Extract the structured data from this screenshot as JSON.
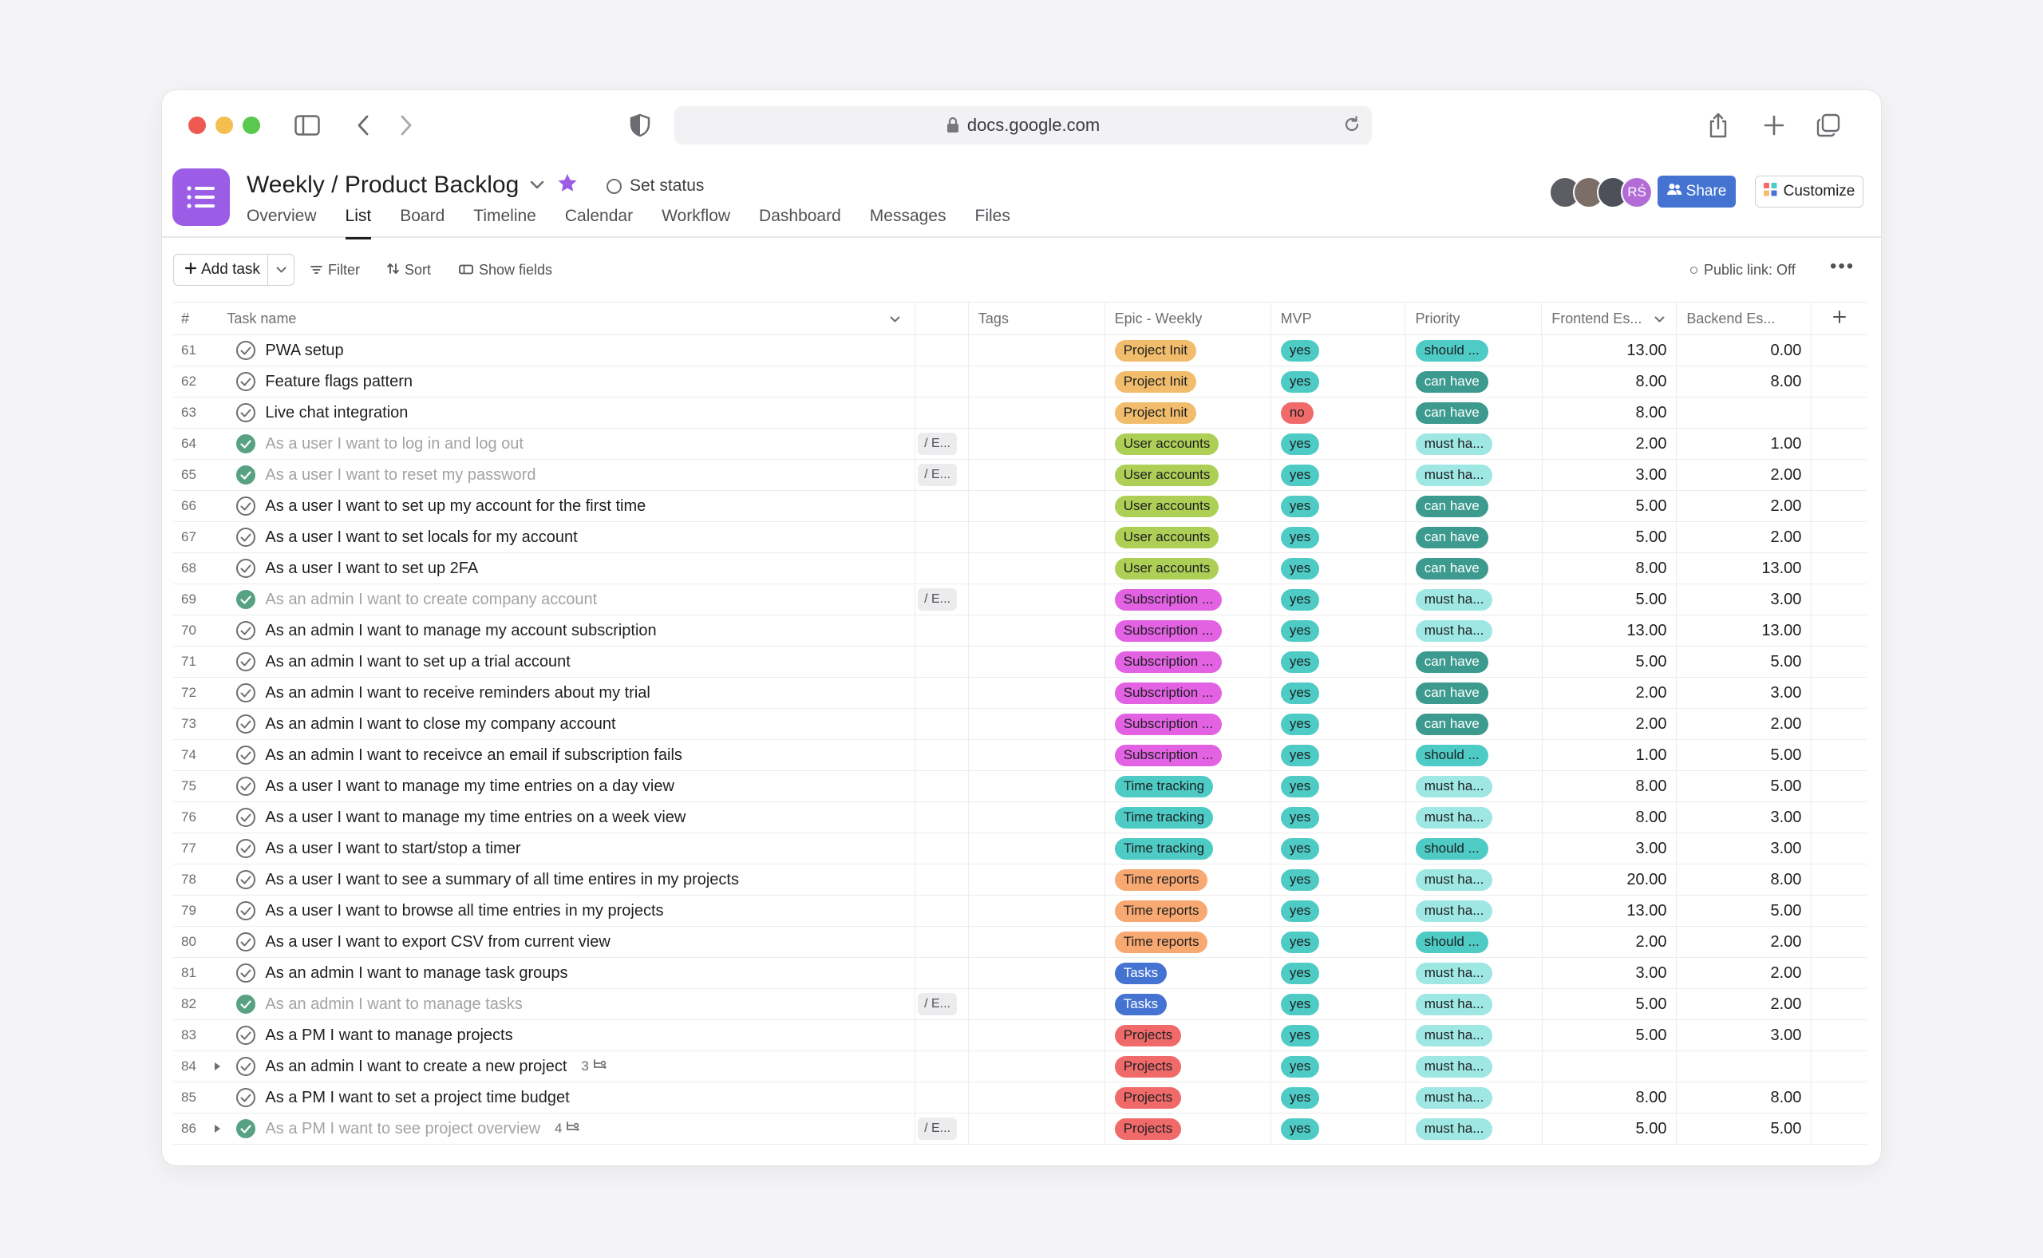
{
  "browser": {
    "url": "docs.google.com"
  },
  "project": {
    "title": "Weekly / Product Backlog",
    "set_status": "Set status",
    "tabs": [
      "Overview",
      "List",
      "Board",
      "Timeline",
      "Calendar",
      "Workflow",
      "Dashboard",
      "Messages",
      "Files"
    ],
    "active_tab": "List",
    "avatars": [
      {
        "initials": "",
        "color": "#5b5d63"
      },
      {
        "initials": "",
        "color": "#7a6e66"
      },
      {
        "initials": "",
        "color": "#4d5058"
      },
      {
        "initials": "RŚ",
        "color": "#b36bd6"
      }
    ],
    "share_label": "Share",
    "customize_label": "Customize"
  },
  "toolbar": {
    "add_task": "Add task",
    "filter": "Filter",
    "sort": "Sort",
    "show_fields": "Show fields",
    "public_link": "Public link: Off"
  },
  "columns": {
    "num": "#",
    "task_name": "Task name",
    "tags": "Tags",
    "epic": "Epic - Weekly",
    "mvp": "MVP",
    "priority": "Priority",
    "frontend": "Frontend Es...",
    "backend": "Backend Es..."
  },
  "epic_colors": {
    "Project Init": {
      "bg": "#f1bd6c",
      "fg": "#1e1f21"
    },
    "User accounts": {
      "bg": "#aecf55",
      "fg": "#1e1f21"
    },
    "Subscription ...": {
      "bg": "#e362e3",
      "fg": "#1e1f21"
    },
    "Time tracking": {
      "bg": "#4ecbc4",
      "fg": "#1e1f21"
    },
    "Time reports": {
      "bg": "#f8a971",
      "fg": "#1e1f21"
    },
    "Tasks": {
      "bg": "#4573d2",
      "fg": "#ffffff"
    },
    "Projects": {
      "bg": "#f06a6a",
      "fg": "#1e1f21"
    }
  },
  "mvp_colors": {
    "yes": {
      "bg": "#4ecbc4",
      "fg": "#1e1f21"
    },
    "no": {
      "bg": "#f06a6a",
      "fg": "#1e1f21"
    }
  },
  "priority_colors": {
    "should ...": {
      "bg": "#4ecbc4",
      "fg": "#1e1f21"
    },
    "can have": {
      "bg": "#3c9a8e",
      "fg": "#ffffff"
    },
    "must ha...": {
      "bg": "#9ee7e3",
      "fg": "#1e1f21"
    }
  },
  "rows": [
    {
      "num": "61",
      "name": "PWA setup",
      "done": false,
      "dep": "",
      "epic": "Project Init",
      "mvp": "yes",
      "priority": "should ...",
      "fe": "13.00",
      "be": "0.00"
    },
    {
      "num": "62",
      "name": "Feature flags pattern",
      "done": false,
      "dep": "",
      "epic": "Project Init",
      "mvp": "yes",
      "priority": "can have",
      "fe": "8.00",
      "be": "8.00"
    },
    {
      "num": "63",
      "name": "Live chat integration",
      "done": false,
      "dep": "",
      "epic": "Project Init",
      "mvp": "no",
      "priority": "can have",
      "fe": "8.00",
      "be": ""
    },
    {
      "num": "64",
      "name": "As a user I want to log in and log out",
      "done": true,
      "dep": "/ E...",
      "epic": "User accounts",
      "mvp": "yes",
      "priority": "must ha...",
      "fe": "2.00",
      "be": "1.00"
    },
    {
      "num": "65",
      "name": "As a user I want to reset my password",
      "done": true,
      "dep": "/ E...",
      "epic": "User accounts",
      "mvp": "yes",
      "priority": "must ha...",
      "fe": "3.00",
      "be": "2.00"
    },
    {
      "num": "66",
      "name": "As a user I want to set up my account for the first time",
      "done": false,
      "dep": "",
      "epic": "User accounts",
      "mvp": "yes",
      "priority": "can have",
      "fe": "5.00",
      "be": "2.00"
    },
    {
      "num": "67",
      "name": "As a user I want to set locals for my account",
      "done": false,
      "dep": "",
      "epic": "User accounts",
      "mvp": "yes",
      "priority": "can have",
      "fe": "5.00",
      "be": "2.00"
    },
    {
      "num": "68",
      "name": "As a user I want to set up 2FA",
      "done": false,
      "dep": "",
      "epic": "User accounts",
      "mvp": "yes",
      "priority": "can have",
      "fe": "8.00",
      "be": "13.00"
    },
    {
      "num": "69",
      "name": "As an admin I want to create company account",
      "done": true,
      "dep": "/ E...",
      "epic": "Subscription ...",
      "mvp": "yes",
      "priority": "must ha...",
      "fe": "5.00",
      "be": "3.00"
    },
    {
      "num": "70",
      "name": "As an admin I want to manage my account subscription",
      "done": false,
      "dep": "",
      "epic": "Subscription ...",
      "mvp": "yes",
      "priority": "must ha...",
      "fe": "13.00",
      "be": "13.00"
    },
    {
      "num": "71",
      "name": "As an admin I want to set up a trial account",
      "done": false,
      "dep": "",
      "epic": "Subscription ...",
      "mvp": "yes",
      "priority": "can have",
      "fe": "5.00",
      "be": "5.00"
    },
    {
      "num": "72",
      "name": "As an admin I want to receive reminders about my trial",
      "done": false,
      "dep": "",
      "epic": "Subscription ...",
      "mvp": "yes",
      "priority": "can have",
      "fe": "2.00",
      "be": "3.00"
    },
    {
      "num": "73",
      "name": "As an admin I want to close my company account",
      "done": false,
      "dep": "",
      "epic": "Subscription ...",
      "mvp": "yes",
      "priority": "can have",
      "fe": "2.00",
      "be": "2.00"
    },
    {
      "num": "74",
      "name": "As an admin I want to receivce an email if subscription fails",
      "done": false,
      "dep": "",
      "epic": "Subscription ...",
      "mvp": "yes",
      "priority": "should ...",
      "fe": "1.00",
      "be": "5.00"
    },
    {
      "num": "75",
      "name": "As a user I want to manage my time entries on a day view",
      "done": false,
      "dep": "",
      "epic": "Time tracking",
      "mvp": "yes",
      "priority": "must ha...",
      "fe": "8.00",
      "be": "5.00"
    },
    {
      "num": "76",
      "name": "As a user I want to manage my time entries on a week view",
      "done": false,
      "dep": "",
      "epic": "Time tracking",
      "mvp": "yes",
      "priority": "must ha...",
      "fe": "8.00",
      "be": "3.00"
    },
    {
      "num": "77",
      "name": "As a user I want to start/stop a timer",
      "done": false,
      "dep": "",
      "epic": "Time tracking",
      "mvp": "yes",
      "priority": "should ...",
      "fe": "3.00",
      "be": "3.00"
    },
    {
      "num": "78",
      "name": "As a user I want to see a summary of all time entires in my projects",
      "done": false,
      "dep": "",
      "epic": "Time reports",
      "mvp": "yes",
      "priority": "must ha...",
      "fe": "20.00",
      "be": "8.00"
    },
    {
      "num": "79",
      "name": "As a user I want to browse all time entries in my projects",
      "done": false,
      "dep": "",
      "epic": "Time reports",
      "mvp": "yes",
      "priority": "must ha...",
      "fe": "13.00",
      "be": "5.00"
    },
    {
      "num": "80",
      "name": "As a user I want to export CSV from current view",
      "done": false,
      "dep": "",
      "epic": "Time reports",
      "mvp": "yes",
      "priority": "should ...",
      "fe": "2.00",
      "be": "2.00"
    },
    {
      "num": "81",
      "name": "As an admin I want to manage task groups",
      "done": false,
      "dep": "",
      "epic": "Tasks",
      "mvp": "yes",
      "priority": "must ha...",
      "fe": "3.00",
      "be": "2.00"
    },
    {
      "num": "82",
      "name": "As an admin I want to manage tasks",
      "done": true,
      "dep": "/ E...",
      "epic": "Tasks",
      "mvp": "yes",
      "priority": "must ha...",
      "fe": "5.00",
      "be": "2.00"
    },
    {
      "num": "83",
      "name": "As a PM I want to manage projects",
      "done": false,
      "dep": "",
      "epic": "Projects",
      "mvp": "yes",
      "priority": "must ha...",
      "fe": "5.00",
      "be": "3.00"
    },
    {
      "num": "84",
      "name": "As an admin I want to create a new project",
      "done": false,
      "dep": "",
      "epic": "Projects",
      "mvp": "yes",
      "priority": "must ha...",
      "fe": "",
      "be": "",
      "subtasks": "3",
      "expandable": true
    },
    {
      "num": "85",
      "name": "As a PM I want to set a project time budget",
      "done": false,
      "dep": "",
      "epic": "Projects",
      "mvp": "yes",
      "priority": "must ha...",
      "fe": "8.00",
      "be": "8.00"
    },
    {
      "num": "86",
      "name": "As a PM I want to see project overview",
      "done": true,
      "dep": "/ E...",
      "epic": "Projects",
      "mvp": "yes",
      "priority": "must ha...",
      "fe": "5.00",
      "be": "5.00",
      "subtasks": "4",
      "expandable": true
    }
  ]
}
